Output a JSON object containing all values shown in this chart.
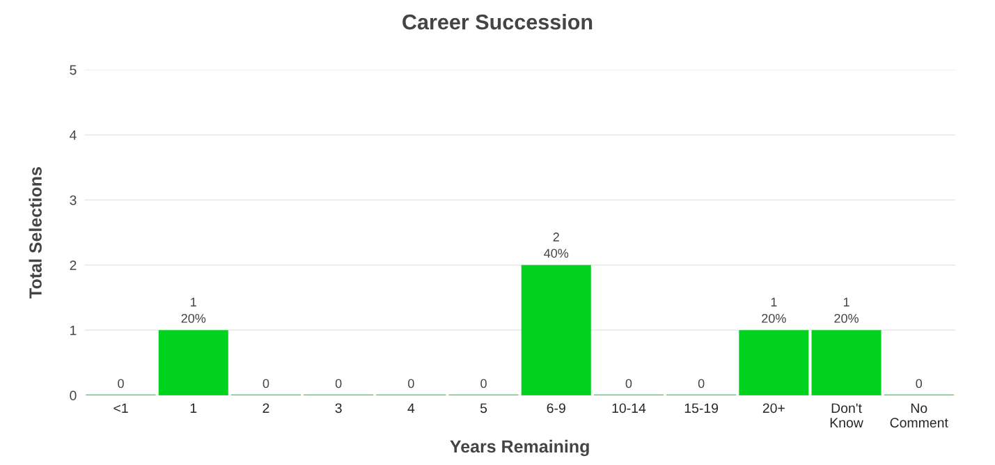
{
  "chart_data": {
    "type": "bar",
    "title": "Career Succession",
    "xlabel": "Years Remaining",
    "ylabel": "Total Selections",
    "categories": [
      "<1",
      "1",
      "2",
      "3",
      "4",
      "5",
      "6-9",
      "10-14",
      "15-19",
      "20+",
      "Don't\nKnow",
      "No\nComment"
    ],
    "values": [
      0,
      1,
      0,
      0,
      0,
      0,
      2,
      0,
      0,
      1,
      1,
      0
    ],
    "value_labels": [
      "0",
      "1\n20%",
      "0",
      "0",
      "0",
      "0",
      "2\n40%",
      "0",
      "0",
      "1\n20%",
      "1\n20%",
      "0"
    ],
    "color": "#00d21e",
    "ylim": [
      0,
      5
    ],
    "yticks": [
      0,
      1,
      2,
      3,
      4,
      5
    ],
    "grid": "y",
    "legend": false
  }
}
